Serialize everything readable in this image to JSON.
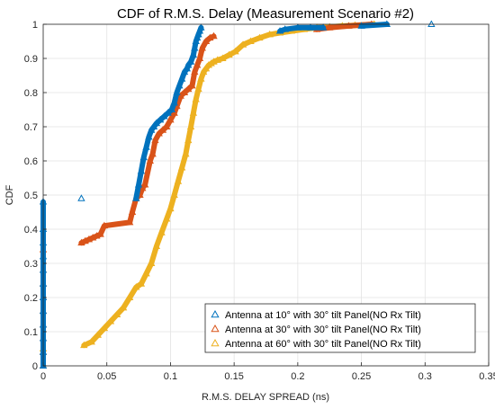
{
  "chart_data": {
    "type": "scatter",
    "title": "CDF of R.M.S. Delay (Measurement Scenario #2)",
    "xlabel": "R.M.S. DELAY SPREAD (ns)",
    "ylabel": "CDF",
    "xlim": [
      0,
      0.35
    ],
    "ylim": [
      0,
      1
    ],
    "xticks": [
      "0",
      "0.05",
      "0.1",
      "0.15",
      "0.2",
      "0.25",
      "0.3",
      "0.35"
    ],
    "yticks": [
      "0",
      "0.1",
      "0.2",
      "0.3",
      "0.4",
      "0.5",
      "0.6",
      "0.7",
      "0.8",
      "0.9",
      "1"
    ],
    "grid": true,
    "legend_position": "bottom-right",
    "marker": "triangle",
    "series": [
      {
        "name": "Antenna at 10° with 30° tilt Panel(NO Rx Tilt)",
        "color": "#0072BD",
        "x": [
          0,
          0,
          0,
          0,
          0,
          0,
          0,
          0,
          0,
          0,
          0,
          0,
          0.03,
          0.073,
          0.075,
          0.077,
          0.079,
          0.081,
          0.083,
          0.085,
          0.087,
          0.089,
          0.092,
          0.095,
          0.098,
          0.101,
          0.103,
          0.105,
          0.107,
          0.109,
          0.111,
          0.113,
          0.114,
          0.116,
          0.118,
          0.119,
          0.12,
          0.121,
          0.122,
          0.123,
          0.124,
          0.186,
          0.19,
          0.2,
          0.21,
          0.22,
          0.25,
          0.27,
          0.305
        ],
        "y": [
          0.0,
          0.04,
          0.08,
          0.12,
          0.16,
          0.2,
          0.24,
          0.28,
          0.32,
          0.36,
          0.4,
          0.48,
          0.49,
          0.49,
          0.53,
          0.57,
          0.61,
          0.64,
          0.67,
          0.69,
          0.7,
          0.71,
          0.72,
          0.73,
          0.74,
          0.75,
          0.77,
          0.8,
          0.82,
          0.84,
          0.86,
          0.87,
          0.88,
          0.89,
          0.91,
          0.93,
          0.95,
          0.96,
          0.97,
          0.98,
          0.99,
          0.98,
          0.985,
          0.99,
          0.99,
          0.99,
          0.995,
          1.0,
          1.0
        ]
      },
      {
        "name": "Antenna at 30° with 30° tilt Panel(NO Rx Tilt)",
        "color": "#D95319",
        "x": [
          0,
          0,
          0,
          0,
          0,
          0,
          0,
          0,
          0,
          0.03,
          0.033,
          0.036,
          0.039,
          0.042,
          0.045,
          0.048,
          0.068,
          0.07,
          0.073,
          0.076,
          0.078,
          0.08,
          0.084,
          0.086,
          0.088,
          0.091,
          0.094,
          0.097,
          0.1,
          0.103,
          0.105,
          0.108,
          0.111,
          0.114,
          0.117,
          0.119,
          0.121,
          0.123,
          0.125,
          0.128,
          0.131,
          0.134,
          0.215,
          0.225,
          0.24,
          0.258
        ],
        "y": [
          0.0,
          0.04,
          0.08,
          0.12,
          0.16,
          0.2,
          0.24,
          0.28,
          0.34,
          0.36,
          0.365,
          0.37,
          0.375,
          0.38,
          0.385,
          0.41,
          0.42,
          0.45,
          0.49,
          0.5,
          0.52,
          0.53,
          0.6,
          0.62,
          0.66,
          0.68,
          0.69,
          0.7,
          0.72,
          0.74,
          0.76,
          0.79,
          0.8,
          0.81,
          0.82,
          0.86,
          0.88,
          0.9,
          0.93,
          0.95,
          0.96,
          0.965,
          0.985,
          0.99,
          0.995,
          1.0
        ]
      },
      {
        "name": "Antenna at 60° with 30° tilt Panel(NO Rx Tilt)",
        "color": "#EDB120",
        "x": [
          0,
          0,
          0.032,
          0.038,
          0.043,
          0.048,
          0.053,
          0.058,
          0.063,
          0.068,
          0.073,
          0.077,
          0.081,
          0.085,
          0.089,
          0.093,
          0.097,
          0.1,
          0.103,
          0.106,
          0.109,
          0.112,
          0.114,
          0.116,
          0.118,
          0.12,
          0.122,
          0.124,
          0.126,
          0.128,
          0.13,
          0.132,
          0.134,
          0.137,
          0.141,
          0.146,
          0.151,
          0.157,
          0.163,
          0.17,
          0.178,
          0.186,
          0.195,
          0.205,
          0.215,
          0.225,
          0.235,
          0.245,
          0.26
        ],
        "y": [
          0.0,
          0.05,
          0.06,
          0.07,
          0.09,
          0.11,
          0.13,
          0.15,
          0.17,
          0.2,
          0.23,
          0.24,
          0.27,
          0.3,
          0.35,
          0.39,
          0.43,
          0.46,
          0.5,
          0.54,
          0.58,
          0.62,
          0.66,
          0.7,
          0.74,
          0.78,
          0.81,
          0.84,
          0.86,
          0.87,
          0.88,
          0.885,
          0.89,
          0.895,
          0.9,
          0.91,
          0.92,
          0.94,
          0.95,
          0.96,
          0.97,
          0.975,
          0.98,
          0.985,
          0.99,
          0.992,
          0.995,
          0.997,
          1.0
        ]
      }
    ]
  }
}
